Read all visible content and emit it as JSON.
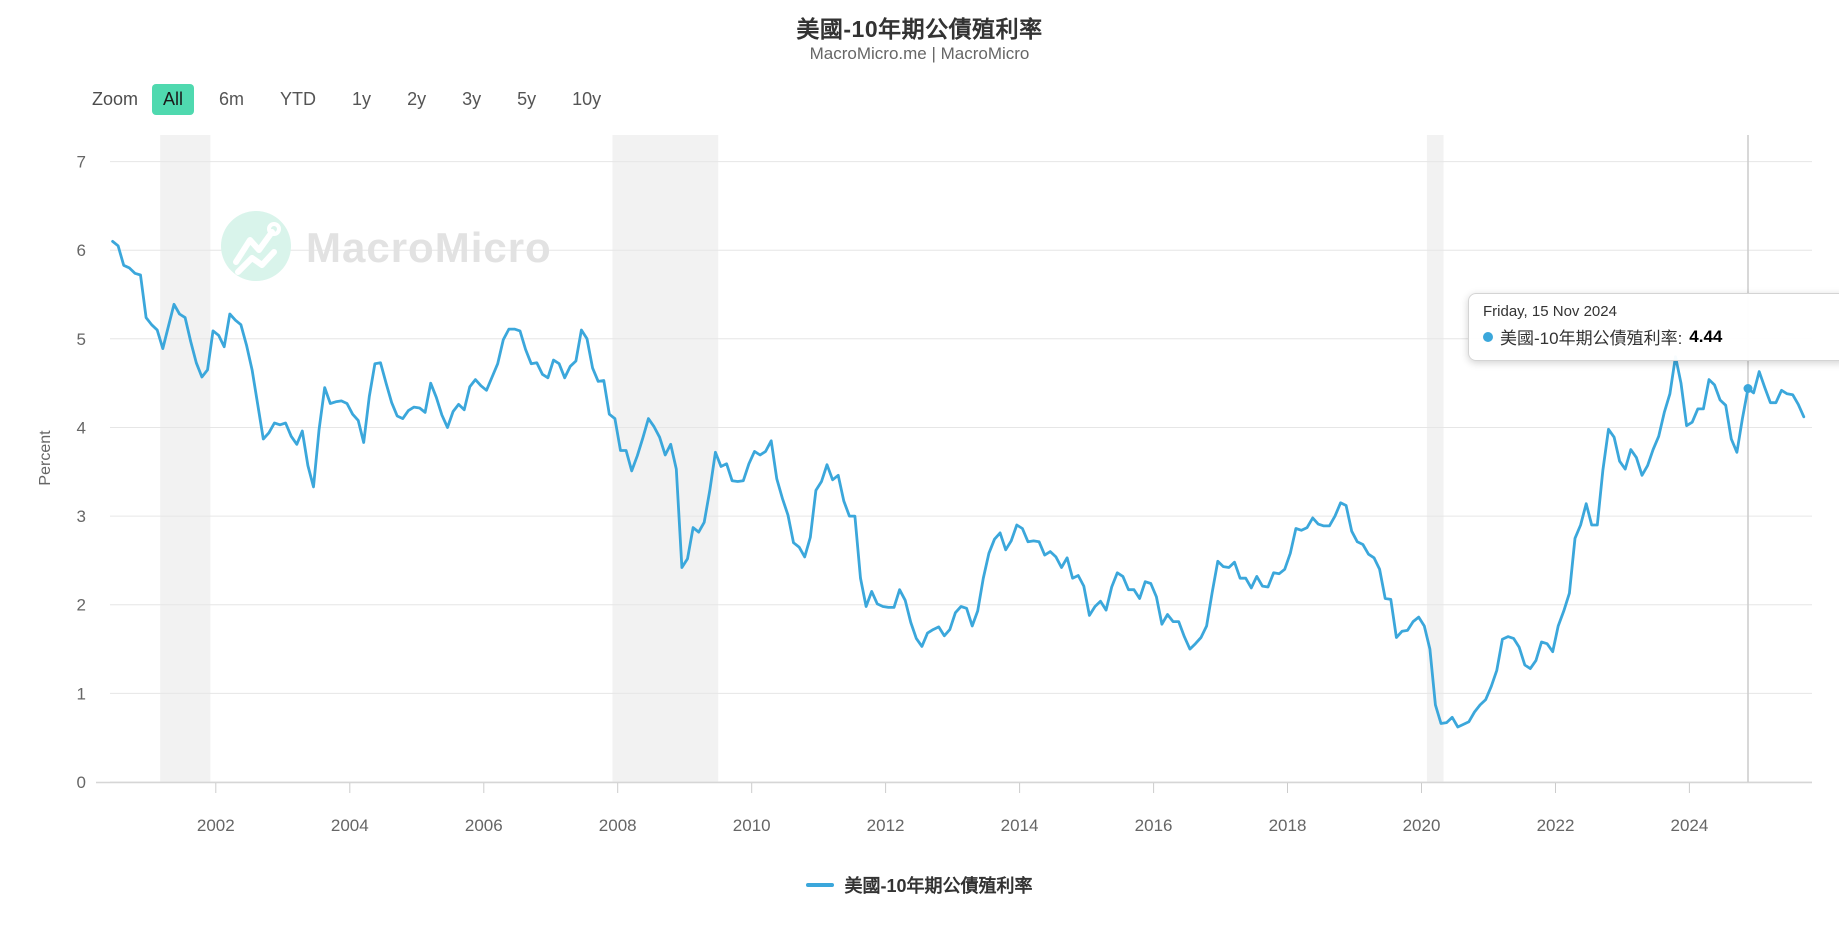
{
  "title": "美國-10年期公債殖利率",
  "subtitle": "MacroMicro.me | MacroMicro",
  "toolbar": {
    "zoom_label": "Zoom",
    "ranges": [
      "All",
      "6m",
      "YTD",
      "1y",
      "2y",
      "3y",
      "5y",
      "10y"
    ],
    "active": "All"
  },
  "watermark": {
    "text": "MacroMicro"
  },
  "tooltip": {
    "date": "Friday, 15 Nov 2024",
    "series_label": "美國-10年期公債殖利率:",
    "value": "4.44"
  },
  "legend": {
    "label": "美國-10年期公債殖利率"
  },
  "colors": {
    "line": "#3BA7DB",
    "active_range_bg": "#4FD9AF",
    "band": "#F2F2F2",
    "grid": "#E6E6E6",
    "axis": "#D6D6D6",
    "tick": "#CCCCCC",
    "crosshair": "#CCCCCC",
    "axis_text": "#666666",
    "watermark_circle": "#D9F4EB",
    "watermark_glyph": "#FFFFFF",
    "watermark_text": "#E2E2E2"
  },
  "chart_data": {
    "type": "line",
    "title": "美國-10年期公債殖利率",
    "xlabel": "",
    "ylabel": "Percent",
    "ylim": [
      0,
      7.3
    ],
    "xlim": [
      2000.42,
      2025.83
    ],
    "y_ticks": [
      0,
      1,
      2,
      3,
      4,
      5,
      6,
      7
    ],
    "x_ticks": [
      2002,
      2004,
      2006,
      2008,
      2010,
      2012,
      2014,
      2016,
      2018,
      2020,
      2022,
      2024
    ],
    "grid": "horizontal",
    "legend_position": "bottom",
    "recession_bands": [
      [
        2001.17,
        2001.92
      ],
      [
        2007.92,
        2009.5
      ],
      [
        2020.08,
        2020.33
      ]
    ],
    "crosshair_x": 2024.875,
    "hover_point": {
      "x": 2024.875,
      "y": 4.44
    },
    "series": [
      {
        "name": "美國-10年期公債殖利率",
        "unit": "Percent",
        "x_start": 2000.4583,
        "x_step": 0.0833333,
        "values": [
          6.1,
          6.05,
          5.83,
          5.8,
          5.74,
          5.72,
          5.24,
          5.16,
          5.1,
          4.89,
          5.14,
          5.39,
          5.28,
          5.24,
          4.97,
          4.73,
          4.57,
          4.65,
          5.09,
          5.04,
          4.91,
          5.28,
          5.21,
          5.16,
          4.93,
          4.65,
          4.26,
          3.87,
          3.94,
          4.05,
          4.03,
          4.05,
          3.9,
          3.81,
          3.96,
          3.57,
          3.33,
          3.98,
          4.45,
          4.27,
          4.29,
          4.3,
          4.27,
          4.15,
          4.08,
          3.83,
          4.35,
          4.72,
          4.73,
          4.5,
          4.28,
          4.13,
          4.1,
          4.19,
          4.23,
          4.22,
          4.17,
          4.5,
          4.34,
          4.14,
          4.0,
          4.18,
          4.26,
          4.2,
          4.46,
          4.54,
          4.47,
          4.42,
          4.57,
          4.72,
          4.99,
          5.11,
          5.11,
          5.09,
          4.88,
          4.72,
          4.73,
          4.6,
          4.56,
          4.76,
          4.72,
          4.56,
          4.69,
          4.75,
          5.1,
          5.0,
          4.67,
          4.52,
          4.53,
          4.15,
          4.1,
          3.74,
          3.74,
          3.51,
          3.68,
          3.88,
          4.1,
          4.01,
          3.89,
          3.69,
          3.81,
          3.53,
          2.42,
          2.52,
          2.87,
          2.82,
          2.93,
          3.29,
          3.72,
          3.56,
          3.59,
          3.4,
          3.39,
          3.4,
          3.59,
          3.73,
          3.69,
          3.73,
          3.85,
          3.42,
          3.2,
          3.01,
          2.7,
          2.65,
          2.54,
          2.76,
          3.29,
          3.39,
          3.58,
          3.41,
          3.46,
          3.17,
          3.0,
          3.0,
          2.3,
          1.98,
          2.15,
          2.01,
          1.98,
          1.97,
          1.97,
          2.17,
          2.05,
          1.8,
          1.62,
          1.53,
          1.68,
          1.72,
          1.75,
          1.65,
          1.72,
          1.91,
          1.98,
          1.96,
          1.76,
          1.93,
          2.3,
          2.58,
          2.74,
          2.81,
          2.62,
          2.72,
          2.9,
          2.86,
          2.71,
          2.72,
          2.71,
          2.56,
          2.6,
          2.54,
          2.42,
          2.53,
          2.3,
          2.33,
          2.21,
          1.88,
          1.98,
          2.04,
          1.94,
          2.2,
          2.36,
          2.32,
          2.17,
          2.17,
          2.07,
          2.26,
          2.24,
          2.09,
          1.78,
          1.89,
          1.81,
          1.81,
          1.64,
          1.5,
          1.56,
          1.63,
          1.76,
          2.14,
          2.49,
          2.43,
          2.42,
          2.48,
          2.3,
          2.3,
          2.19,
          2.32,
          2.21,
          2.2,
          2.36,
          2.35,
          2.4,
          2.58,
          2.86,
          2.84,
          2.87,
          2.98,
          2.91,
          2.89,
          2.89,
          3.0,
          3.15,
          3.12,
          2.83,
          2.71,
          2.68,
          2.57,
          2.53,
          2.4,
          2.07,
          2.06,
          1.63,
          1.7,
          1.71,
          1.81,
          1.86,
          1.76,
          1.5,
          0.87,
          0.66,
          0.67,
          0.73,
          0.62,
          0.65,
          0.68,
          0.79,
          0.87,
          0.93,
          1.08,
          1.26,
          1.61,
          1.64,
          1.62,
          1.52,
          1.32,
          1.28,
          1.37,
          1.58,
          1.56,
          1.47,
          1.76,
          1.93,
          2.13,
          2.75,
          2.9,
          3.14,
          2.9,
          2.9,
          3.52,
          3.98,
          3.89,
          3.62,
          3.53,
          3.75,
          3.66,
          3.46,
          3.57,
          3.75,
          3.9,
          4.17,
          4.38,
          4.8,
          4.5,
          4.02,
          4.06,
          4.21,
          4.21,
          4.54,
          4.48,
          4.31,
          4.25,
          3.87,
          3.72,
          4.1,
          4.44,
          4.39,
          4.63,
          4.45,
          4.28,
          4.28,
          4.42,
          4.38,
          4.37,
          4.26,
          4.12
        ]
      }
    ]
  }
}
